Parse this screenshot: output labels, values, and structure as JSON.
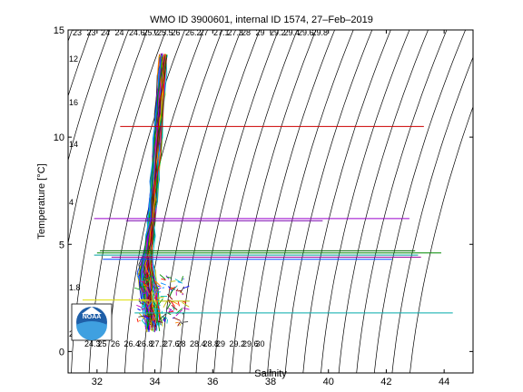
{
  "chart_data": {
    "type": "scatter",
    "title": "WMO ID 3900601, internal ID 1574, 27–Feb–2019",
    "xlabel": "Salinity",
    "ylabel": "Temperature [°C]",
    "xlim": [
      31,
      45
    ],
    "ylim": [
      -1,
      15
    ],
    "xticks": [
      "32",
      "34",
      "36",
      "38",
      "40",
      "42",
      "44"
    ],
    "yticks": [
      "0",
      "5",
      "10",
      "15"
    ],
    "isopycnals": {
      "sigma_min": 21.5,
      "sigma_max": 34.5,
      "step": 0.5,
      "top_labels": [
        "23",
        "23",
        "24",
        "24",
        "24.6",
        "25.2",
        "25.5",
        "26",
        "26.2",
        "27",
        "27.1",
        "27.3",
        "28",
        "29",
        "29.2",
        "29.4",
        "29.6",
        "29.8"
      ],
      "bottom_labels": [
        "24.3",
        "25",
        "26",
        "26.4",
        "26.8",
        "27.2",
        "27.6",
        "28",
        "28.4",
        "28.8",
        "29",
        "29.2",
        "29.6",
        "30"
      ],
      "left_labels": [
        "12",
        "16",
        "14",
        "4",
        "1.8",
        "2"
      ]
    },
    "profile_core": [
      {
        "s": 33.95,
        "t": 1.2
      },
      {
        "s": 33.9,
        "t": 1.8
      },
      {
        "s": 33.85,
        "t": 2.3
      },
      {
        "s": 33.8,
        "t": 2.8
      },
      {
        "s": 33.75,
        "t": 3.2
      },
      {
        "s": 33.7,
        "t": 3.8
      },
      {
        "s": 33.75,
        "t": 4.5
      },
      {
        "s": 33.85,
        "t": 5.4
      },
      {
        "s": 33.9,
        "t": 6.2
      },
      {
        "s": 33.95,
        "t": 7.0
      },
      {
        "s": 34.0,
        "t": 8.0
      },
      {
        "s": 34.05,
        "t": 9.0
      },
      {
        "s": 34.1,
        "t": 10.0
      },
      {
        "s": 34.15,
        "t": 11.0
      },
      {
        "s": 34.2,
        "t": 12.0
      },
      {
        "s": 34.25,
        "t": 13.0
      },
      {
        "s": 34.3,
        "t": 13.8
      }
    ],
    "spikes": [
      {
        "t": 10.5,
        "s_from": 32.8,
        "s_to": 43.3,
        "color": "#cc0000"
      },
      {
        "t": 6.2,
        "s_from": 31.9,
        "s_to": 42.8,
        "color": "#9900cc"
      },
      {
        "t": 6.1,
        "s_from": 33.0,
        "s_to": 39.8,
        "color": "#7a00b0"
      },
      {
        "t": 4.7,
        "s_from": 32.1,
        "s_to": 43.0,
        "color": "#006600"
      },
      {
        "t": 4.6,
        "s_from": 32.0,
        "s_to": 43.9,
        "color": "#008800"
      },
      {
        "t": 4.5,
        "s_from": 31.9,
        "s_to": 43.1,
        "color": "#00a0a0"
      },
      {
        "t": 4.4,
        "s_from": 32.5,
        "s_to": 43.2,
        "color": "#990099"
      },
      {
        "t": 4.3,
        "s_from": 32.2,
        "s_to": 42.2,
        "color": "#0044ff"
      },
      {
        "t": 2.4,
        "s_from": 31.5,
        "s_to": 33.8,
        "color": "#dddd00"
      },
      {
        "t": 2.35,
        "s_from": 33.5,
        "s_to": 35.2,
        "color": "#bbbb00"
      },
      {
        "t": 1.8,
        "s_from": 33.3,
        "s_to": 44.3,
        "color": "#00aaaa"
      }
    ],
    "noaa_logo": {
      "text": "NOAA"
    }
  }
}
